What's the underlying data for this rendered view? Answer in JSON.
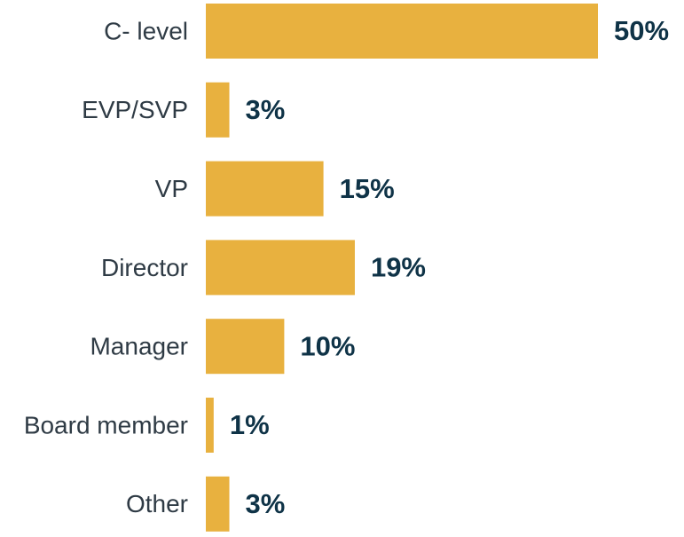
{
  "chart_data": {
    "type": "bar",
    "orientation": "horizontal",
    "categories": [
      "C- level",
      "EVP/SVP",
      "VP",
      "Director",
      "Manager",
      "Board member",
      "Other"
    ],
    "values": [
      50,
      3,
      15,
      19,
      10,
      1,
      3
    ],
    "value_labels": [
      "50%",
      "3%",
      "15%",
      "19%",
      "10%",
      "1%",
      "3%"
    ],
    "color": "#e8b13f"
  }
}
